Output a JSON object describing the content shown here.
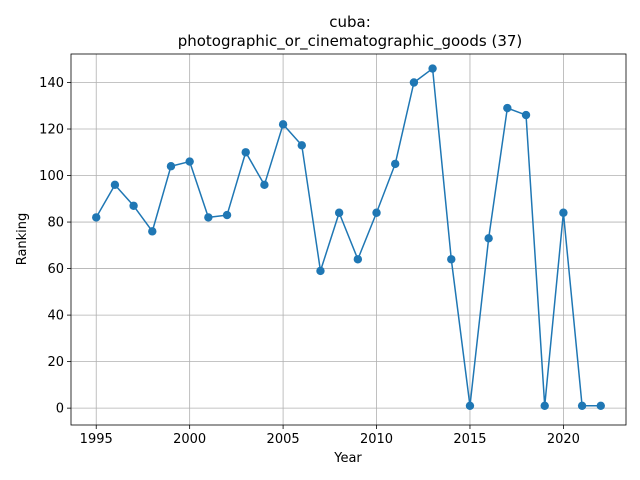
{
  "chart_data": {
    "type": "line",
    "title_line1": "cuba:",
    "title_line2": "photographic_or_cinematographic_goods (37)",
    "xlabel": "Year",
    "ylabel": "Ranking",
    "xlim": [
      1993.65,
      2023.35
    ],
    "ylim": [
      -7.25,
      152.25
    ],
    "xticks": [
      1995,
      2000,
      2005,
      2010,
      2015,
      2020
    ],
    "yticks": [
      0,
      20,
      40,
      60,
      80,
      100,
      120,
      140
    ],
    "grid": true,
    "color": "#1f77b4",
    "x": [
      1995,
      1996,
      1997,
      1998,
      1999,
      2000,
      2001,
      2002,
      2003,
      2004,
      2005,
      2006,
      2007,
      2008,
      2009,
      2010,
      2011,
      2012,
      2013,
      2014,
      2015,
      2016,
      2017,
      2018,
      2019,
      2020,
      2021,
      2022
    ],
    "y": [
      82,
      96,
      87,
      76,
      104,
      106,
      82,
      83,
      110,
      96,
      122,
      113,
      59,
      84,
      64,
      84,
      105,
      140,
      146,
      64,
      1,
      73,
      129,
      126,
      1,
      84,
      1,
      1
    ]
  }
}
